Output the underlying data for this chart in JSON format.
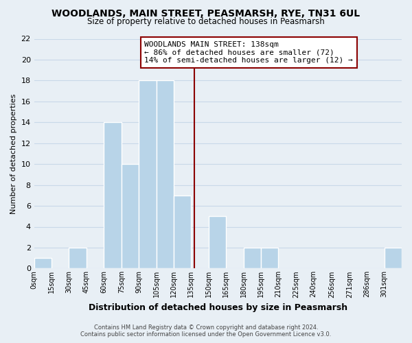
{
  "title": "WOODLANDS, MAIN STREET, PEASMARSH, RYE, TN31 6UL",
  "subtitle": "Size of property relative to detached houses in Peasmarsh",
  "xlabel": "Distribution of detached houses by size in Peasmarsh",
  "ylabel": "Number of detached properties",
  "bin_edges": [
    0,
    15,
    30,
    45,
    60,
    75,
    90,
    105,
    120,
    135,
    150,
    165,
    180,
    195,
    210,
    225,
    240,
    256,
    271,
    286,
    301,
    316
  ],
  "bin_counts": [
    1,
    0,
    2,
    0,
    14,
    10,
    18,
    18,
    7,
    0,
    5,
    0,
    2,
    2,
    0,
    0,
    0,
    0,
    0,
    0,
    2
  ],
  "bar_color": "#b8d4e8",
  "bar_edgecolor": "#ffffff",
  "vline_x": 138,
  "vline_color": "#8b0000",
  "ylim": [
    0,
    22
  ],
  "yticks": [
    0,
    2,
    4,
    6,
    8,
    10,
    12,
    14,
    16,
    18,
    20,
    22
  ],
  "xtick_labels": [
    "0sqm",
    "15sqm",
    "30sqm",
    "45sqm",
    "60sqm",
    "75sqm",
    "90sqm",
    "105sqm",
    "120sqm",
    "135sqm",
    "150sqm",
    "165sqm",
    "180sqm",
    "195sqm",
    "210sqm",
    "225sqm",
    "240sqm",
    "256sqm",
    "271sqm",
    "286sqm",
    "301sqm"
  ],
  "annotation_title": "WOODLANDS MAIN STREET: 138sqm",
  "annotation_line1": "← 86% of detached houses are smaller (72)",
  "annotation_line2": "14% of semi-detached houses are larger (12) →",
  "footer1": "Contains HM Land Registry data © Crown copyright and database right 2024.",
  "footer2": "Contains public sector information licensed under the Open Government Licence v3.0.",
  "grid_color": "#c8d8e8",
  "background_color": "#e8eff5"
}
